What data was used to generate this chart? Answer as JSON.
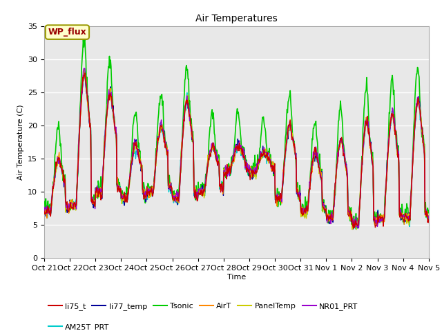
{
  "title": "Air Temperatures",
  "xlabel": "Time",
  "ylabel": "Air Temperature (C)",
  "ylim": [
    0,
    35
  ],
  "yticks": [
    0,
    5,
    10,
    15,
    20,
    25,
    30,
    35
  ],
  "x_labels": [
    "Oct 21",
    "Oct 22",
    "Oct 23",
    "Oct 24",
    "Oct 25",
    "Oct 26",
    "Oct 27",
    "Oct 28",
    "Oct 29",
    "Oct 30",
    "Oct 31",
    "Nov 1",
    "Nov 2",
    "Nov 3",
    "Nov 4",
    "Nov 5"
  ],
  "series_order": [
    "li75_t",
    "li77_temp",
    "Tsonic",
    "AirT",
    "PanelTemp",
    "NR01_PRT",
    "AM25T_PRT"
  ],
  "series": {
    "li75_t": {
      "color": "#cc0000",
      "lw": 1.0,
      "zorder": 5
    },
    "li77_temp": {
      "color": "#000099",
      "lw": 1.0,
      "zorder": 4
    },
    "Tsonic": {
      "color": "#00cc00",
      "lw": 1.2,
      "zorder": 3
    },
    "AirT": {
      "color": "#ff8800",
      "lw": 1.0,
      "zorder": 4
    },
    "PanelTemp": {
      "color": "#cccc00",
      "lw": 1.0,
      "zorder": 4
    },
    "NR01_PRT": {
      "color": "#9900cc",
      "lw": 1.0,
      "zorder": 4
    },
    "AM25T_PRT": {
      "color": "#00cccc",
      "lw": 1.0,
      "zorder": 2
    }
  },
  "legend_ncol_row1": 6,
  "legend_row1": [
    "li75_t",
    "li77_temp",
    "Tsonic",
    "AirT",
    "PanelTemp",
    "NR01_PRT"
  ],
  "legend_row2": [
    "AM25T_PRT"
  ],
  "annotation_text": "WP_flux",
  "annotation_color": "#990000",
  "annotation_bg": "#ffffcc",
  "annotation_border": "#999900",
  "background_color": "#e8e8e8",
  "plot_bg_color": "#d8d8d8",
  "title_fontsize": 10,
  "label_fontsize": 8,
  "tick_fontsize": 8,
  "legend_fontsize": 8
}
